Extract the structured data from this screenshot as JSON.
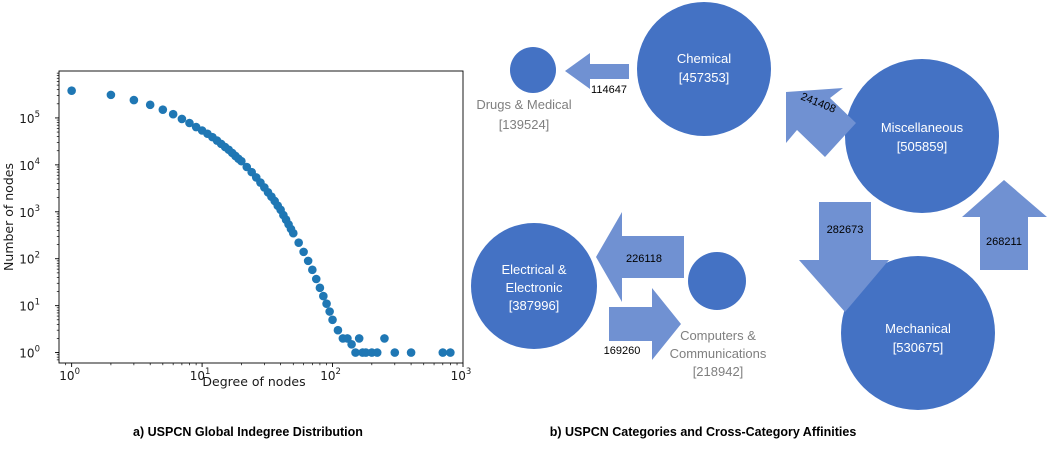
{
  "captions": {
    "left": "a) USPCN Global Indegree Distribution",
    "right": "b) USPCN Categories and Cross-Category Affinities"
  },
  "chart_data": {
    "type": "scatter",
    "xlabel": "Degree of nodes",
    "ylabel": "Number of nodes",
    "xscale": "log",
    "yscale": "log",
    "xlim": [
      0.8,
      1000
    ],
    "ylim": [
      0.6,
      1000000
    ],
    "x_ticks": [
      {
        "base": "10",
        "exp": "0"
      },
      {
        "base": "10",
        "exp": "1"
      },
      {
        "base": "10",
        "exp": "2"
      },
      {
        "base": "10",
        "exp": "3"
      }
    ],
    "y_ticks": [
      {
        "base": "10",
        "exp": "0"
      },
      {
        "base": "10",
        "exp": "1"
      },
      {
        "base": "10",
        "exp": "2"
      },
      {
        "base": "10",
        "exp": "3"
      },
      {
        "base": "10",
        "exp": "4"
      },
      {
        "base": "10",
        "exp": "5"
      }
    ],
    "color": "#1f77b4",
    "x": [
      1,
      2,
      3,
      4,
      5,
      6,
      7,
      8,
      9,
      10,
      11,
      12,
      13,
      14,
      15,
      16,
      17,
      18,
      19,
      20,
      22,
      24,
      26,
      28,
      30,
      32,
      34,
      36,
      38,
      40,
      42,
      44,
      46,
      48,
      50,
      55,
      60,
      65,
      70,
      75,
      80,
      85,
      90,
      95,
      100,
      110,
      120,
      130,
      140,
      150,
      160,
      170,
      180,
      200,
      220,
      250,
      300,
      400,
      700,
      800
    ],
    "y": [
      380000,
      310000,
      240000,
      190000,
      150000,
      120000,
      95000,
      78000,
      64000,
      54000,
      46000,
      39000,
      33000,
      28000,
      24000,
      21000,
      18000,
      15500,
      13500,
      12000,
      9000,
      7000,
      5400,
      4200,
      3300,
      2600,
      2100,
      1700,
      1350,
      1100,
      850,
      680,
      540,
      430,
      350,
      220,
      140,
      90,
      58,
      37,
      24,
      16,
      11,
      7.5,
      5,
      3,
      2,
      2,
      1.5,
      1,
      2,
      1,
      1,
      1,
      1,
      2,
      1,
      1,
      1,
      1
    ]
  },
  "diagram": {
    "nodes": [
      {
        "name": "Chemical",
        "count": "[457353]"
      },
      {
        "name": "Drugs & Medical",
        "count": "[139524]"
      },
      {
        "name": "Miscellaneous",
        "count": "[505859]"
      },
      {
        "name_lines": [
          "Electrical &",
          "Electronic"
        ],
        "count": "[387996]"
      },
      {
        "name_lines": [
          "Computers &",
          "Communications"
        ],
        "count": "[218942]"
      },
      {
        "name": "Mechanical",
        "count": "[530675]"
      }
    ],
    "edges": {
      "chem_drugs": "114647",
      "misc_chem": "241408",
      "misc_mech": "282673",
      "mech_misc": "268211",
      "comp_elec": "226118",
      "elec_comp": "169260"
    },
    "colors": {
      "node": "#4472c4",
      "arrow": "#7091d2"
    }
  }
}
